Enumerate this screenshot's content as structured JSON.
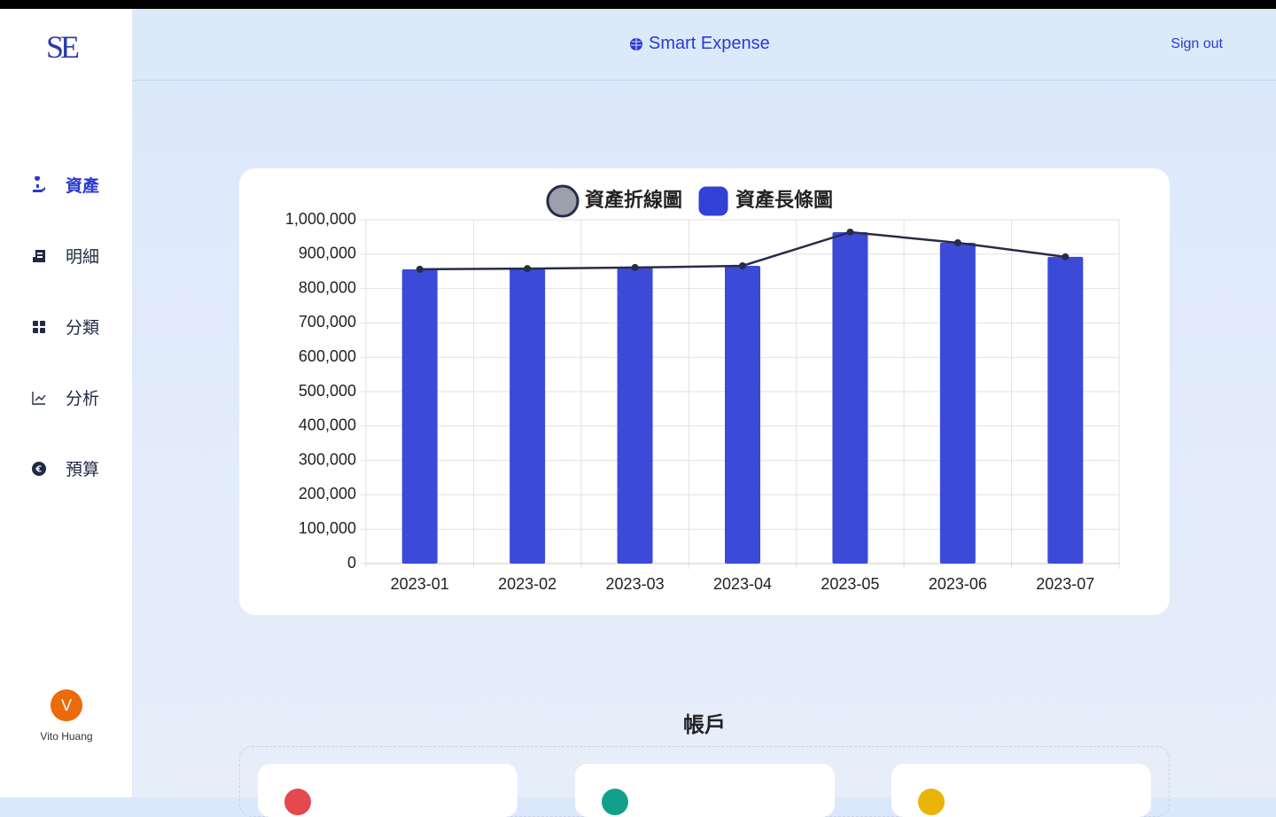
{
  "sidebar": {
    "logo": "SE",
    "nav": [
      {
        "label": "資產",
        "active": true
      },
      {
        "label": "明細",
        "active": false
      },
      {
        "label": "分類",
        "active": false
      },
      {
        "label": "分析",
        "active": false
      },
      {
        "label": "預算",
        "active": false
      }
    ],
    "user": {
      "initial": "V",
      "name": "Vito Huang"
    }
  },
  "header": {
    "title": "Smart Expense",
    "sign_out": "Sign out"
  },
  "chart_data": {
    "type": "bar",
    "categories": [
      "2023-01",
      "2023-02",
      "2023-03",
      "2023-04",
      "2023-05",
      "2023-06",
      "2023-07"
    ],
    "series": [
      {
        "name": "資產折線圖",
        "type": "line",
        "color": "#272c48",
        "values": [
          856000,
          858000,
          861000,
          866000,
          964000,
          933000,
          892000
        ]
      },
      {
        "name": "資產長條圖",
        "type": "bar",
        "color": "#3240d6",
        "values": [
          856000,
          858000,
          861000,
          866000,
          964000,
          933000,
          892000
        ]
      }
    ],
    "ylim": [
      0,
      1000000
    ],
    "yticks": [
      0,
      {
        "value": 100000,
        "label": "100,000"
      },
      {
        "value": 200000,
        "label": "200,000"
      },
      {
        "value": 300000,
        "label": "300,000"
      },
      {
        "value": 400000,
        "label": "400,000"
      },
      {
        "value": 500000,
        "label": "500,000"
      },
      {
        "value": 600000,
        "label": "600,000"
      },
      {
        "value": 700000,
        "label": "700,000"
      },
      {
        "value": 800000,
        "label": "800,000"
      },
      {
        "value": 900000,
        "label": "900,000"
      },
      {
        "value": 1000000,
        "label": "1,000,000"
      }
    ],
    "grid": true,
    "legend": "top"
  },
  "accounts": {
    "title": "帳戶"
  }
}
